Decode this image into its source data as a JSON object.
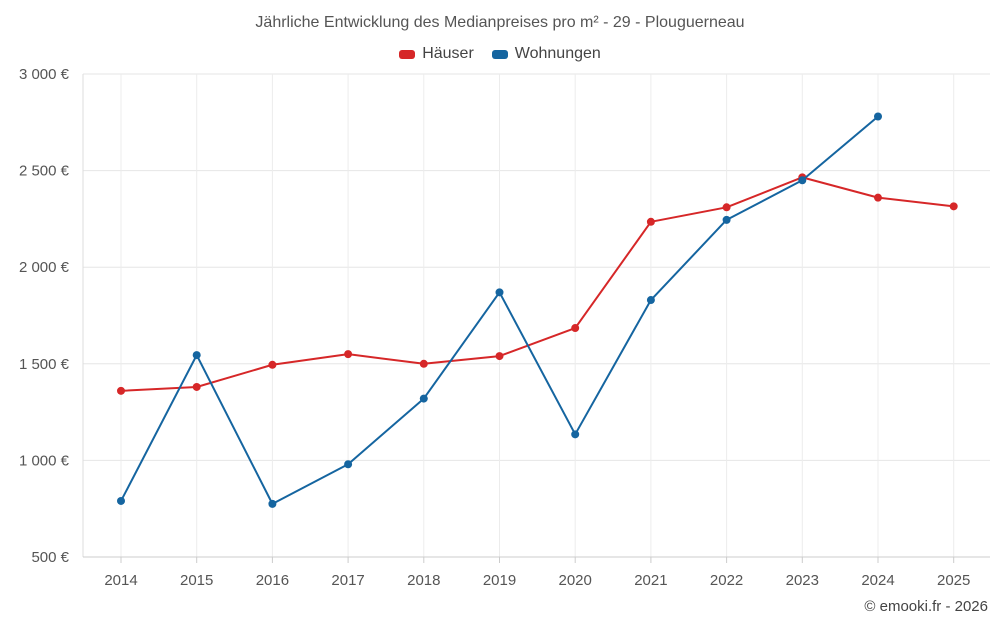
{
  "chart_data": {
    "type": "line",
    "title": "Jährliche Entwicklung des Medianpreises pro m² - 29 - Plouguerneau",
    "categories": [
      "2014",
      "2015",
      "2016",
      "2017",
      "2018",
      "2019",
      "2020",
      "2021",
      "2022",
      "2023",
      "2024",
      "2025"
    ],
    "series": [
      {
        "name": "Häuser",
        "color": "#d62728",
        "values": [
          1360,
          1380,
          1495,
          1550,
          1500,
          1540,
          1685,
          2235,
          2310,
          2465,
          2360,
          2315
        ]
      },
      {
        "name": "Wohnungen",
        "color": "#1565a0",
        "values": [
          790,
          1545,
          775,
          980,
          1320,
          1870,
          1135,
          1830,
          2245,
          2450,
          2780,
          null
        ]
      }
    ],
    "ylim": [
      500,
      3000
    ],
    "yticks": [
      500,
      1000,
      1500,
      2000,
      2500,
      3000
    ],
    "ytick_labels": [
      "500 €",
      "1 000 €",
      "1 500 €",
      "2 000 €",
      "2 500 €",
      "3 000 €"
    ],
    "xlabel": "",
    "ylabel": "",
    "grid": true,
    "legend": "top-center"
  },
  "footer": "© emooki.fr - 2026"
}
